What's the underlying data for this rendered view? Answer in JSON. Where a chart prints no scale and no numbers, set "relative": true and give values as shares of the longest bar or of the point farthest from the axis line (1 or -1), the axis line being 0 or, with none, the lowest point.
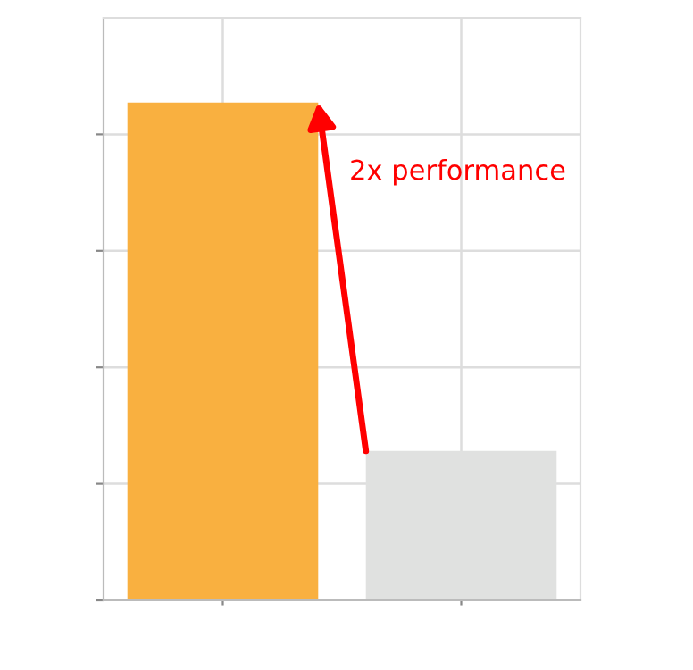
{
  "chart_data": {
    "type": "bar",
    "relative": true,
    "categories": [
      null,
      null
    ],
    "values": [
      1,
      0.3
    ],
    "colors": [
      "#f9b040",
      "#e0e1e0"
    ],
    "annotations": [
      "2x performance"
    ],
    "grid": true
  }
}
